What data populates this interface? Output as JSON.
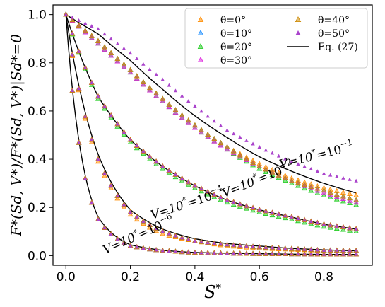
{
  "chart_data": {
    "type": "scatter",
    "xlabel": "S*",
    "ylabel": "F*(S_d, V*)/F*(S_d, V*)|S_d*=0",
    "xlim": [
      -0.04,
      0.95
    ],
    "ylim": [
      -0.04,
      1.04
    ],
    "xticks": [
      0.0,
      0.2,
      0.4,
      0.6,
      0.8
    ],
    "xtick_labels": [
      "0.0",
      "0.2",
      "0.4",
      "0.6",
      "0.8"
    ],
    "yticks": [
      0.0,
      0.2,
      0.4,
      0.6,
      0.8,
      1.0
    ],
    "ytick_labels": [
      "0.0",
      "0.2",
      "0.4",
      "0.6",
      "0.8",
      "1.0"
    ],
    "grid": false,
    "legend_position": "top-right",
    "legend_columns": 2,
    "x": [
      0.0,
      0.1,
      0.2,
      0.3,
      0.4,
      0.5,
      0.6,
      0.7,
      0.8,
      0.9
    ],
    "series": [
      {
        "name": "θ=0°",
        "group": "V*=10^-1",
        "color": "#ff8c00",
        "values": [
          1.0,
          0.89,
          0.77,
          0.65,
          0.54,
          0.45,
          0.38,
          0.32,
          0.28,
          0.25
        ]
      },
      {
        "name": "θ=10°",
        "group": "V*=10^-1",
        "color": "#1f8fff",
        "values": [
          1.0,
          0.89,
          0.77,
          0.65,
          0.54,
          0.45,
          0.37,
          0.31,
          0.27,
          0.23
        ]
      },
      {
        "name": "θ=20°",
        "group": "V*=10^-1",
        "color": "#22cc22",
        "values": [
          1.0,
          0.88,
          0.76,
          0.64,
          0.53,
          0.44,
          0.36,
          0.3,
          0.25,
          0.21
        ]
      },
      {
        "name": "θ=30°",
        "group": "V*=10^-1",
        "color": "#dd22dd",
        "values": [
          1.0,
          0.88,
          0.76,
          0.64,
          0.53,
          0.44,
          0.37,
          0.31,
          0.26,
          0.22
        ]
      },
      {
        "name": "θ=40°",
        "group": "V*=10^-1",
        "color": "#cc8800",
        "values": [
          1.0,
          0.89,
          0.77,
          0.65,
          0.54,
          0.45,
          0.37,
          0.31,
          0.27,
          0.23
        ]
      },
      {
        "name": "θ=50°",
        "group": "V*=10^-1",
        "color": "#aa44cc",
        "values": [
          1.0,
          0.94,
          0.84,
          0.73,
          0.62,
          0.52,
          0.45,
          0.39,
          0.34,
          0.31
        ]
      },
      {
        "name": "Eq. (27)",
        "group": "V*=10^-1",
        "color": "#000000",
        "values": [
          1.0,
          0.92,
          0.81,
          0.69,
          0.58,
          0.49,
          0.41,
          0.35,
          0.3,
          0.26
        ]
      },
      {
        "name": "θ=0°",
        "group": "V*=10^-2",
        "color": "#ff8c00",
        "values": [
          1.0,
          0.66,
          0.48,
          0.37,
          0.29,
          0.23,
          0.19,
          0.16,
          0.13,
          0.11
        ]
      },
      {
        "name": "θ=10°",
        "group": "V*=10^-2",
        "color": "#1f8fff",
        "values": [
          1.0,
          0.66,
          0.48,
          0.37,
          0.29,
          0.23,
          0.19,
          0.16,
          0.13,
          0.11
        ]
      },
      {
        "name": "θ=20°",
        "group": "V*=10^-2",
        "color": "#22cc22",
        "values": [
          1.0,
          0.65,
          0.47,
          0.36,
          0.28,
          0.22,
          0.18,
          0.15,
          0.12,
          0.1
        ]
      },
      {
        "name": "θ=30°",
        "group": "V*=10^-2",
        "color": "#dd22dd",
        "values": [
          1.0,
          0.66,
          0.48,
          0.37,
          0.29,
          0.23,
          0.19,
          0.16,
          0.13,
          0.11
        ]
      },
      {
        "name": "θ=40°",
        "group": "V*=10^-2",
        "color": "#cc8800",
        "values": [
          1.0,
          0.66,
          0.48,
          0.37,
          0.29,
          0.23,
          0.19,
          0.16,
          0.13,
          0.11
        ]
      },
      {
        "name": "θ=50°",
        "group": "V*=10^-2",
        "color": "#aa44cc",
        "values": [
          1.0,
          0.66,
          0.48,
          0.37,
          0.29,
          0.23,
          0.19,
          0.16,
          0.13,
          0.11
        ]
      },
      {
        "name": "Eq. (27)",
        "group": "V*=10^-2",
        "color": "#000000",
        "values": [
          1.0,
          0.66,
          0.48,
          0.37,
          0.29,
          0.23,
          0.19,
          0.16,
          0.13,
          0.11
        ]
      },
      {
        "name": "θ=0°",
        "group": "V*=10^-4",
        "color": "#ff8c00",
        "values": [
          1.0,
          0.39,
          0.17,
          0.09,
          0.06,
          0.04,
          0.03,
          0.025,
          0.02,
          0.018
        ]
      },
      {
        "name": "θ=10°",
        "group": "V*=10^-4",
        "color": "#1f8fff",
        "values": [
          1.0,
          0.4,
          0.18,
          0.1,
          0.06,
          0.045,
          0.035,
          0.028,
          0.022,
          0.02
        ]
      },
      {
        "name": "θ=20°",
        "group": "V*=10^-4",
        "color": "#22cc22",
        "values": [
          1.0,
          0.4,
          0.18,
          0.1,
          0.06,
          0.045,
          0.035,
          0.028,
          0.022,
          0.02
        ]
      },
      {
        "name": "θ=30°",
        "group": "V*=10^-4",
        "color": "#dd22dd",
        "values": [
          1.0,
          0.4,
          0.18,
          0.1,
          0.06,
          0.045,
          0.035,
          0.028,
          0.022,
          0.02
        ]
      },
      {
        "name": "θ=40°",
        "group": "V*=10^-4",
        "color": "#cc8800",
        "values": [
          1.0,
          0.4,
          0.18,
          0.1,
          0.06,
          0.045,
          0.035,
          0.028,
          0.022,
          0.02
        ]
      },
      {
        "name": "θ=50°",
        "group": "V*=10^-4",
        "color": "#aa44cc",
        "values": [
          1.0,
          0.4,
          0.18,
          0.1,
          0.06,
          0.045,
          0.035,
          0.028,
          0.022,
          0.02
        ]
      },
      {
        "name": "Eq. (27)",
        "group": "V*=10^-4",
        "color": "#000000",
        "values": [
          1.0,
          0.42,
          0.19,
          0.11,
          0.07,
          0.05,
          0.04,
          0.03,
          0.024,
          0.02
        ]
      },
      {
        "name": "θ=0°",
        "group": "V*=10^-6",
        "color": "#ff8c00",
        "values": [
          1.0,
          0.15,
          0.04,
          0.02,
          0.012,
          0.009,
          0.007,
          0.006,
          0.005,
          0.005
        ]
      },
      {
        "name": "θ=10°",
        "group": "V*=10^-6",
        "color": "#1f8fff",
        "values": [
          1.0,
          0.15,
          0.04,
          0.02,
          0.012,
          0.009,
          0.007,
          0.006,
          0.005,
          0.005
        ]
      },
      {
        "name": "θ=20°",
        "group": "V*=10^-6",
        "color": "#22cc22",
        "values": [
          1.0,
          0.15,
          0.04,
          0.02,
          0.012,
          0.009,
          0.007,
          0.006,
          0.005,
          0.005
        ]
      },
      {
        "name": "θ=30°",
        "group": "V*=10^-6",
        "color": "#dd22dd",
        "values": [
          1.0,
          0.15,
          0.04,
          0.02,
          0.012,
          0.009,
          0.007,
          0.006,
          0.005,
          0.005
        ]
      },
      {
        "name": "θ=40°",
        "group": "V*=10^-6",
        "color": "#cc8800",
        "values": [
          1.0,
          0.15,
          0.04,
          0.02,
          0.012,
          0.009,
          0.007,
          0.006,
          0.005,
          0.005
        ]
      },
      {
        "name": "θ=50°",
        "group": "V*=10^-6",
        "color": "#aa44cc",
        "values": [
          1.0,
          0.15,
          0.04,
          0.02,
          0.012,
          0.009,
          0.007,
          0.006,
          0.005,
          0.005
        ]
      },
      {
        "name": "Eq. (27)",
        "group": "V*=10^-6",
        "color": "#000000",
        "values": [
          1.0,
          0.16,
          0.045,
          0.022,
          0.013,
          0.01,
          0.008,
          0.006,
          0.005,
          0.005
        ]
      }
    ],
    "annotations": [
      {
        "text": "V*=10^-1",
        "x": 0.78,
        "y": 0.4,
        "rotation": -14
      },
      {
        "text": "V*=10^-2",
        "x": 0.6,
        "y": 0.3,
        "rotation": -22
      },
      {
        "text": "V*=10^-4",
        "x": 0.38,
        "y": 0.2,
        "rotation": -18
      },
      {
        "text": "V*=10^-6",
        "x": 0.23,
        "y": 0.07,
        "rotation": -24
      }
    ],
    "legend": [
      {
        "label": "θ=0°",
        "marker": "triangle",
        "color": "#ff8c00"
      },
      {
        "label": "θ=40°",
        "marker": "triangle",
        "color": "#cc8800"
      },
      {
        "label": "θ=10°",
        "marker": "triangle",
        "color": "#1f8fff"
      },
      {
        "label": "θ=50°",
        "marker": "triangle",
        "color": "#aa44cc"
      },
      {
        "label": "θ=20°",
        "marker": "triangle",
        "color": "#22cc22"
      },
      {
        "label": "Eq. (27)",
        "marker": "line",
        "color": "#000000"
      },
      {
        "label": "θ=30°",
        "marker": "triangle",
        "color": "#dd22dd"
      }
    ]
  }
}
